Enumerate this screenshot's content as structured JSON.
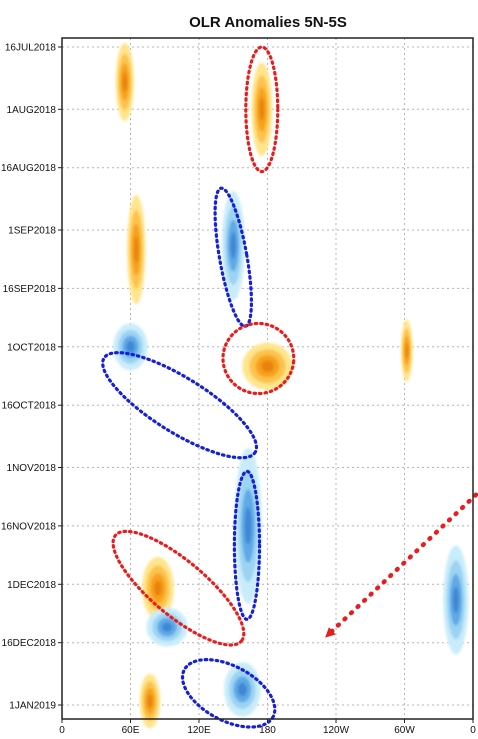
{
  "chart_data": {
    "type": "heatmap",
    "title": "OLR Anomalies 5N-5S",
    "x_axis": {
      "ticks": [
        {
          "lon": 0,
          "label": "0"
        },
        {
          "lon": 60,
          "label": "60E"
        },
        {
          "lon": 120,
          "label": "120E"
        },
        {
          "lon": 180,
          "label": "180"
        },
        {
          "lon": 240,
          "label": "120W"
        },
        {
          "lon": 300,
          "label": "60W"
        },
        {
          "lon": 360,
          "label": "0"
        }
      ],
      "range": [
        0,
        360
      ]
    },
    "y_axis": {
      "ticks": [
        {
          "date": "2018-07-16",
          "label": "16JUL2018"
        },
        {
          "date": "2018-08-01",
          "label": "1AUG2018"
        },
        {
          "date": "2018-08-16",
          "label": "16AUG2018"
        },
        {
          "date": "2018-09-01",
          "label": "1SEP2018"
        },
        {
          "date": "2018-09-16",
          "label": "16SEP2018"
        },
        {
          "date": "2018-10-01",
          "label": "1OCT2018"
        },
        {
          "date": "2018-10-16",
          "label": "16OCT2018"
        },
        {
          "date": "2018-11-01",
          "label": "1NOV2018"
        },
        {
          "date": "2018-11-16",
          "label": "16NOV2018"
        },
        {
          "date": "2018-12-01",
          "label": "1DEC2018"
        },
        {
          "date": "2018-12-16",
          "label": "16DEC2018"
        },
        {
          "date": "2019-01-01",
          "label": "1JAN2019"
        }
      ],
      "range": [
        "2018-07-16",
        "2019-01-01"
      ],
      "direction": "time increases downward"
    },
    "grid": true,
    "colors": {
      "positive_weak": "#ffe58c",
      "positive_mid": "#fcc24e",
      "positive_strong": "#f5a11f",
      "positive_max": "#e9820c",
      "negative_weak": "#c9ecfa",
      "negative_mid": "#9bd3f2",
      "negative_strong": "#5ea9e6",
      "negative_max": "#3f86d4",
      "annotation_red": "#e81e1e",
      "annotation_blue": "#1520d8",
      "grid": "#b4b4b4"
    },
    "anomaly_patches": [
      {
        "sign": "positive",
        "lon_center": 55,
        "date_center": "2018-07-25",
        "lon_halfwidth": 8,
        "day_halfwidth": 10
      },
      {
        "sign": "positive",
        "lon_center": 65,
        "date_center": "2018-09-06",
        "lon_halfwidth": 8,
        "day_halfwidth": 14
      },
      {
        "sign": "positive",
        "lon_center": 175,
        "date_center": "2018-08-01",
        "lon_halfwidth": 9,
        "day_halfwidth": 12
      },
      {
        "sign": "positive",
        "lon_center": 180,
        "date_center": "2018-10-06",
        "lon_halfwidth": 22,
        "day_halfwidth": 6
      },
      {
        "sign": "positive",
        "lon_center": 84,
        "date_center": "2018-12-02",
        "lon_halfwidth": 14,
        "day_halfwidth": 8
      },
      {
        "sign": "positive",
        "lon_center": 77,
        "date_center": "2018-12-31",
        "lon_halfwidth": 9,
        "day_halfwidth": 7
      },
      {
        "sign": "positive",
        "lon_center": 302,
        "date_center": "2018-10-02",
        "lon_halfwidth": 5,
        "day_halfwidth": 8
      },
      {
        "sign": "negative",
        "lon_center": 150,
        "date_center": "2018-09-05",
        "lon_halfwidth": 10,
        "day_halfwidth": 14
      },
      {
        "sign": "negative",
        "lon_center": 60,
        "date_center": "2018-10-01",
        "lon_halfwidth": 15,
        "day_halfwidth": 6
      },
      {
        "sign": "negative",
        "lon_center": 163,
        "date_center": "2018-11-16",
        "lon_halfwidth": 12,
        "day_halfwidth": 20
      },
      {
        "sign": "negative",
        "lon_center": 345,
        "date_center": "2018-12-05",
        "lon_halfwidth": 11,
        "day_halfwidth": 14
      },
      {
        "sign": "negative",
        "lon_center": 158,
        "date_center": "2018-12-28",
        "lon_halfwidth": 16,
        "day_halfwidth": 7
      },
      {
        "sign": "negative",
        "lon_center": 92,
        "date_center": "2018-12-12",
        "lon_halfwidth": 18,
        "day_halfwidth": 5
      }
    ],
    "annotations": [
      {
        "shape": "ellipse",
        "color": "red",
        "lon_center": 175,
        "date_center": "2018-08-01",
        "lon_radius": 14,
        "day_radius": 16,
        "angle": 0
      },
      {
        "shape": "ellipse",
        "color": "blue",
        "lon_center": 150,
        "date_center": "2018-09-08",
        "lon_radius": 12,
        "day_radius": 18,
        "angle": -10
      },
      {
        "shape": "ellipse",
        "color": "blue",
        "lon_center": 103,
        "date_center": "2018-10-16",
        "lon_radius": 78,
        "day_radius": 7,
        "angle": 32
      },
      {
        "shape": "ellipse",
        "color": "red",
        "lon_center": 172,
        "date_center": "2018-10-04",
        "lon_radius": 31,
        "day_radius": 9,
        "angle": 5
      },
      {
        "shape": "ellipse",
        "color": "blue",
        "lon_center": 162,
        "date_center": "2018-11-21",
        "lon_radius": 11,
        "day_radius": 19,
        "angle": 0
      },
      {
        "shape": "ellipse",
        "color": "red",
        "lon_center": 102,
        "date_center": "2018-12-02",
        "lon_radius": 72,
        "day_radius": 7,
        "angle": 40
      },
      {
        "shape": "ellipse",
        "color": "blue",
        "lon_center": 146,
        "date_center": "2018-12-29",
        "lon_radius": 44,
        "day_radius": 7,
        "angle": 28
      }
    ],
    "arrow": {
      "color": "red",
      "from_lon": 366,
      "from_date": "2018-11-08",
      "to_lon": 233,
      "to_date": "2018-12-14"
    }
  }
}
